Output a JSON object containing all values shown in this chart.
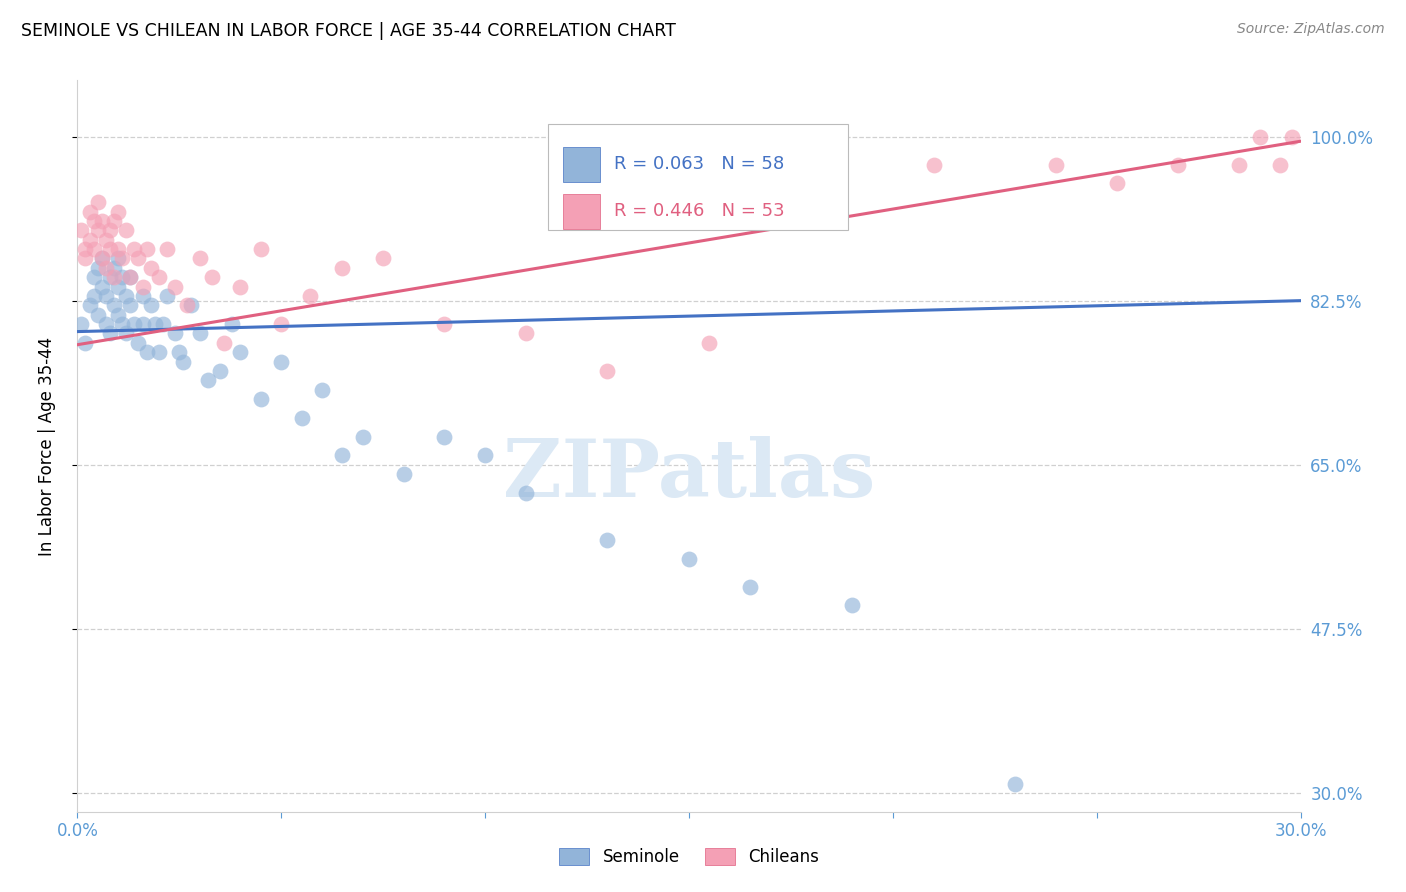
{
  "title": "SEMINOLE VS CHILEAN IN LABOR FORCE | AGE 35-44 CORRELATION CHART",
  "source_text": "Source: ZipAtlas.com",
  "ylabel": "In Labor Force | Age 35-44",
  "xlim": [
    0.0,
    0.3
  ],
  "ylim": [
    0.28,
    1.06
  ],
  "yticks": [
    0.3,
    0.475,
    0.65,
    0.825,
    1.0
  ],
  "ytick_labels": [
    "30.0%",
    "47.5%",
    "65.0%",
    "82.5%",
    "100.0%"
  ],
  "xticks": [
    0.0,
    0.05,
    0.1,
    0.15,
    0.2,
    0.25,
    0.3
  ],
  "xtick_labels": [
    "0.0%",
    "",
    "",
    "",
    "",
    "",
    "30.0%"
  ],
  "seminole_R": 0.063,
  "seminole_N": 58,
  "chilean_R": 0.446,
  "chilean_N": 53,
  "seminole_color": "#92b4d9",
  "chilean_color": "#f4a0b5",
  "trendline_seminole_color": "#4472c4",
  "trendline_chilean_color": "#e06080",
  "watermark_color": "#dce9f5",
  "grid_color": "#d0d0d0",
  "tick_label_color": "#5b9bd5",
  "seminole_x": [
    0.001,
    0.002,
    0.003,
    0.004,
    0.004,
    0.005,
    0.005,
    0.006,
    0.006,
    0.007,
    0.007,
    0.008,
    0.008,
    0.009,
    0.009,
    0.01,
    0.01,
    0.01,
    0.011,
    0.011,
    0.012,
    0.012,
    0.013,
    0.013,
    0.014,
    0.015,
    0.016,
    0.016,
    0.017,
    0.018,
    0.019,
    0.02,
    0.021,
    0.022,
    0.024,
    0.025,
    0.026,
    0.028,
    0.03,
    0.032,
    0.035,
    0.038,
    0.04,
    0.045,
    0.05,
    0.055,
    0.06,
    0.065,
    0.07,
    0.08,
    0.09,
    0.1,
    0.11,
    0.13,
    0.15,
    0.165,
    0.19,
    0.23
  ],
  "seminole_y": [
    0.8,
    0.78,
    0.82,
    0.85,
    0.83,
    0.86,
    0.81,
    0.84,
    0.87,
    0.83,
    0.8,
    0.85,
    0.79,
    0.82,
    0.86,
    0.84,
    0.81,
    0.87,
    0.85,
    0.8,
    0.83,
    0.79,
    0.82,
    0.85,
    0.8,
    0.78,
    0.83,
    0.8,
    0.77,
    0.82,
    0.8,
    0.77,
    0.8,
    0.83,
    0.79,
    0.77,
    0.76,
    0.82,
    0.79,
    0.74,
    0.75,
    0.8,
    0.77,
    0.72,
    0.76,
    0.7,
    0.73,
    0.66,
    0.68,
    0.64,
    0.68,
    0.66,
    0.62,
    0.57,
    0.55,
    0.52,
    0.5,
    0.31
  ],
  "chilean_x": [
    0.001,
    0.002,
    0.002,
    0.003,
    0.003,
    0.004,
    0.004,
    0.005,
    0.005,
    0.006,
    0.006,
    0.007,
    0.007,
    0.008,
    0.008,
    0.009,
    0.009,
    0.01,
    0.01,
    0.011,
    0.012,
    0.013,
    0.014,
    0.015,
    0.016,
    0.017,
    0.018,
    0.02,
    0.022,
    0.024,
    0.027,
    0.03,
    0.033,
    0.036,
    0.04,
    0.045,
    0.05,
    0.057,
    0.065,
    0.075,
    0.09,
    0.11,
    0.13,
    0.155,
    0.18,
    0.21,
    0.24,
    0.255,
    0.27,
    0.285,
    0.29,
    0.295,
    0.298
  ],
  "chilean_y": [
    0.9,
    0.88,
    0.87,
    0.92,
    0.89,
    0.91,
    0.88,
    0.93,
    0.9,
    0.91,
    0.87,
    0.89,
    0.86,
    0.9,
    0.88,
    0.91,
    0.85,
    0.88,
    0.92,
    0.87,
    0.9,
    0.85,
    0.88,
    0.87,
    0.84,
    0.88,
    0.86,
    0.85,
    0.88,
    0.84,
    0.82,
    0.87,
    0.85,
    0.78,
    0.84,
    0.88,
    0.8,
    0.83,
    0.86,
    0.87,
    0.8,
    0.79,
    0.75,
    0.78,
    0.96,
    0.97,
    0.97,
    0.95,
    0.97,
    0.97,
    1.0,
    0.97,
    1.0
  ],
  "seminole_trendline_x": [
    0.0,
    0.3
  ],
  "seminole_trendline_y": [
    0.792,
    0.825
  ],
  "chilean_trendline_x": [
    0.0,
    0.3
  ],
  "chilean_trendline_y": [
    0.778,
    0.995
  ]
}
